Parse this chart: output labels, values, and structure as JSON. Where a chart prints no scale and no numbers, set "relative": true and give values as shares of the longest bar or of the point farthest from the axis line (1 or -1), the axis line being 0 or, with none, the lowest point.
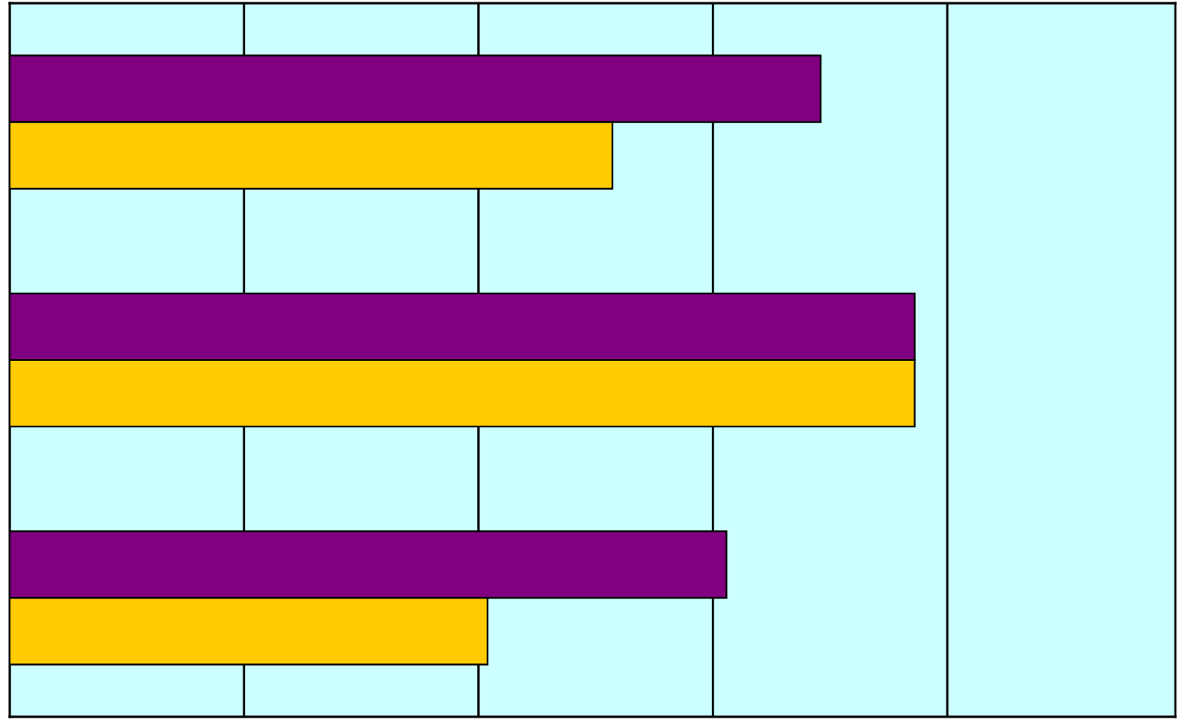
{
  "chart_data": {
    "type": "bar",
    "orientation": "horizontal",
    "relative": true,
    "categories": [
      null,
      null,
      null
    ],
    "series": [
      {
        "color": "#800080",
        "values": [
          0.896,
          1,
          0.792
        ]
      },
      {
        "color": "#ffcc00",
        "values": [
          0.666,
          1,
          0.528
        ]
      }
    ],
    "grid": "x",
    "legend": false
  }
}
